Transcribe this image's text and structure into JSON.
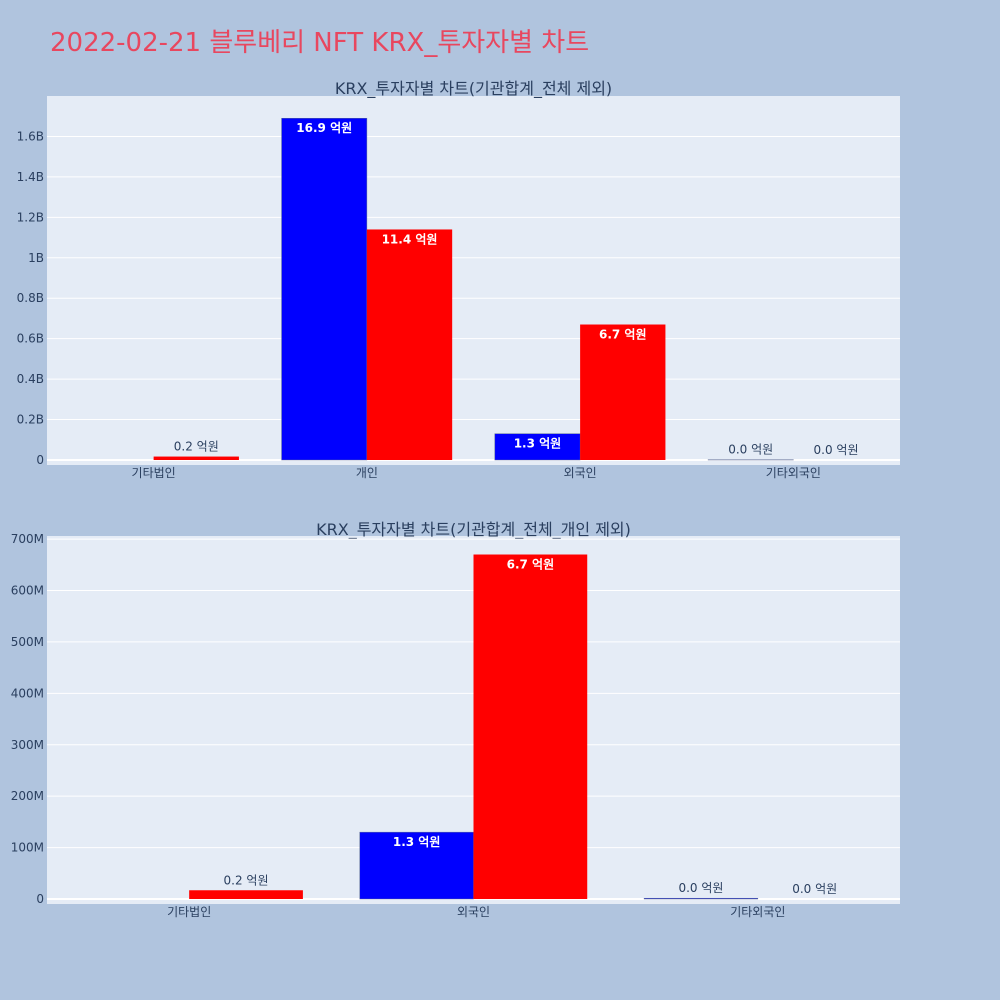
{
  "page_title": "2022-02-21 블루베리 NFT KRX_투자자별 차트",
  "colors": {
    "background": "#b0c4de",
    "plot_bg": "#e5ecf6",
    "title": "#e8475f",
    "series_a": "#0000ff",
    "series_b": "#ff0000"
  },
  "chart_data": [
    {
      "type": "bar",
      "title": "KRX_투자자별 차트(기관합계_전체 제외)",
      "categories": [
        "기타법인",
        "개인",
        "외국인",
        "기타외국인"
      ],
      "ylim": [
        0,
        1800000000
      ],
      "yticks": [
        0,
        200000000,
        400000000,
        600000000,
        800000000,
        1000000000,
        1200000000,
        1400000000,
        1600000000
      ],
      "ytick_labels": [
        "0",
        "0.2B",
        "0.4B",
        "0.6B",
        "0.8B",
        "1B",
        "1.2B",
        "1.4B",
        "1.6B"
      ],
      "grid": true,
      "series": [
        {
          "color": "#0000ff",
          "values": [
            0,
            1690000000,
            130000000,
            1500000
          ],
          "labels": [
            "",
            "16.9 억원",
            "1.3 억원",
            "0.0 억원"
          ]
        },
        {
          "color": "#ff0000",
          "values": [
            17000000,
            1140000000,
            670000000,
            0
          ],
          "labels": [
            "0.2 억원",
            "11.4 억원",
            "6.7 억원",
            "0.0 억원"
          ]
        }
      ]
    },
    {
      "type": "bar",
      "title": "KRX_투자자별 차트(기관합계_전체_개인 제외)",
      "categories": [
        "기타법인",
        "외국인",
        "기타외국인"
      ],
      "ylim": [
        0,
        706000000
      ],
      "yticks": [
        0,
        100000000,
        200000000,
        300000000,
        400000000,
        500000000,
        600000000,
        700000000
      ],
      "ytick_labels": [
        "0",
        "100M",
        "200M",
        "300M",
        "400M",
        "500M",
        "600M",
        "700M"
      ],
      "grid": true,
      "series": [
        {
          "color": "#0000ff",
          "values": [
            0,
            130000000,
            1500000
          ],
          "labels": [
            "",
            "1.3 억원",
            "0.0 억원"
          ]
        },
        {
          "color": "#ff0000",
          "values": [
            17000000,
            670000000,
            0
          ],
          "labels": [
            "0.2 억원",
            "6.7 억원",
            "0.0 억원"
          ]
        }
      ]
    }
  ]
}
